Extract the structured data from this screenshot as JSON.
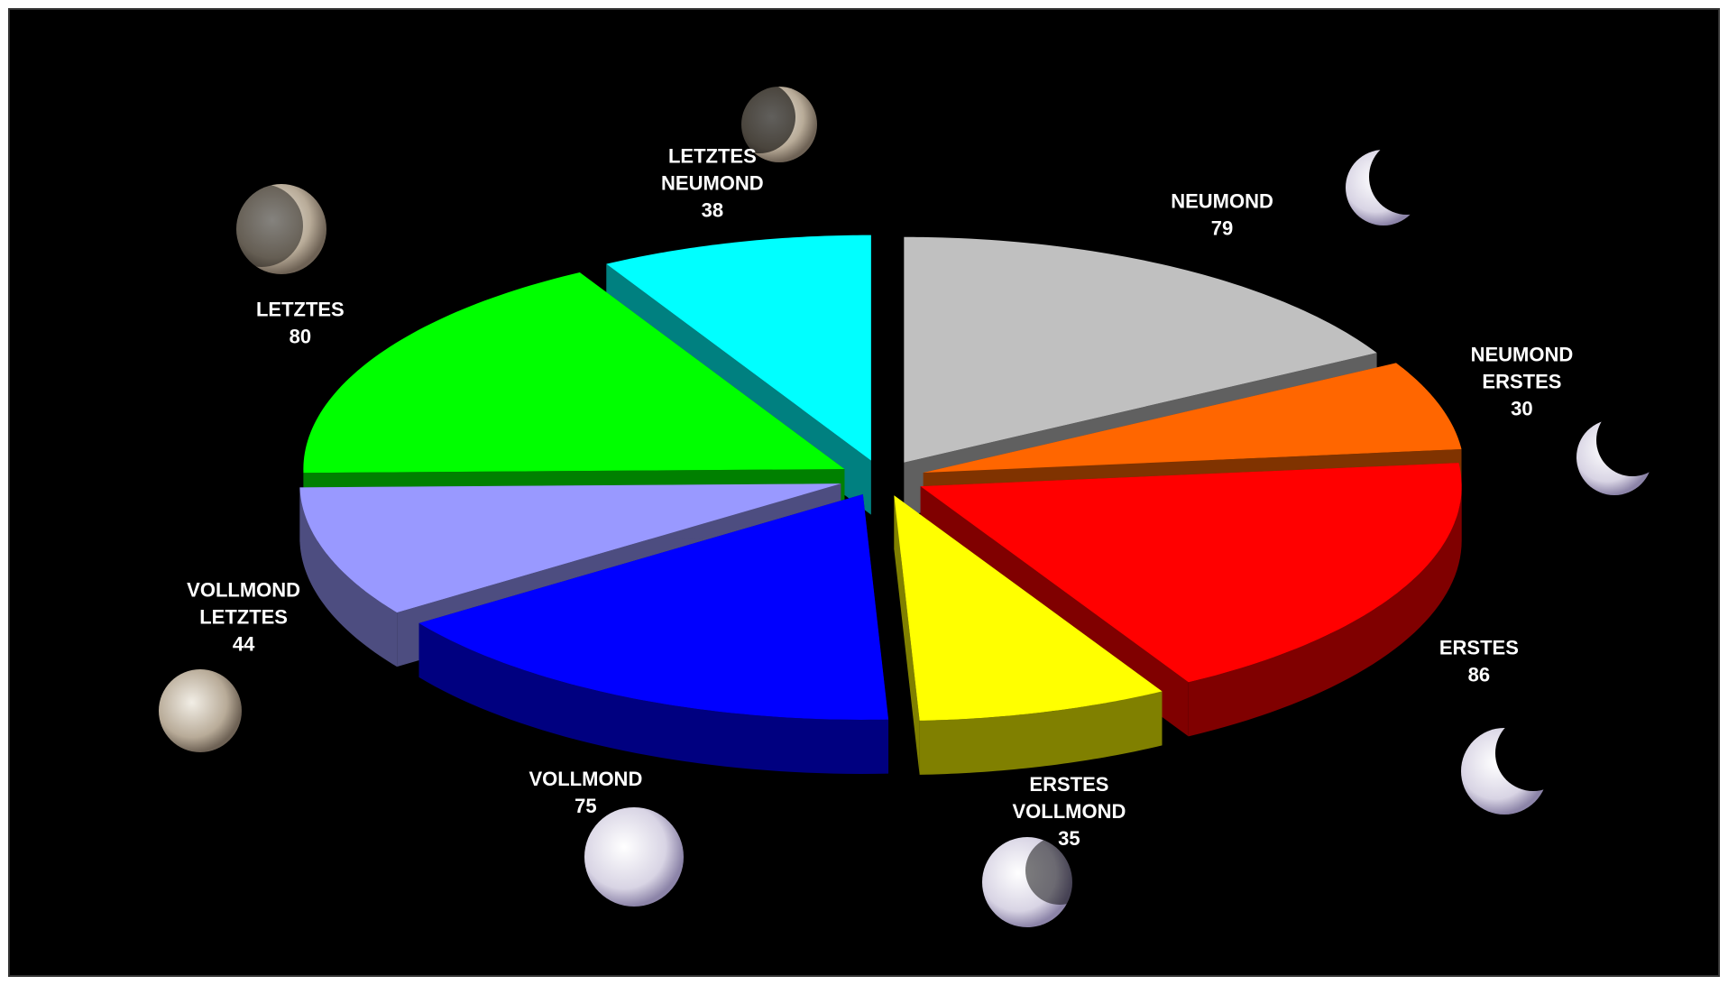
{
  "chart_data": {
    "type": "pie3d",
    "categories": [
      [
        "NEUMOND"
      ],
      [
        "NEUMOND",
        "ERSTES"
      ],
      [
        "ERSTES"
      ],
      [
        "ERSTES",
        "VOLLMOND"
      ],
      [
        "VOLLMOND"
      ],
      [
        "VOLLMOND",
        "LETZTES"
      ],
      [
        "LETZTES"
      ],
      [
        "LETZTES",
        "NEUMOND"
      ]
    ],
    "values": [
      79,
      30,
      86,
      35,
      75,
      44,
      80,
      38
    ],
    "colors": [
      "#c0c0c0",
      "#ff6600",
      "#ff0000",
      "#ffff00",
      "#0000ff",
      "#9999ff",
      "#00ff00",
      "#00ffff"
    ]
  }
}
